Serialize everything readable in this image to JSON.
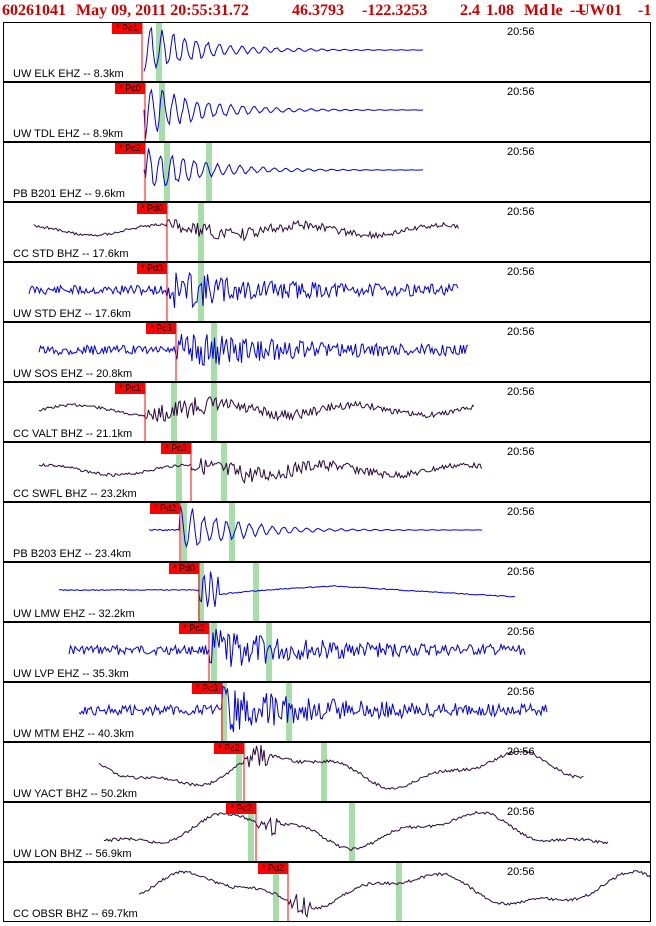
{
  "header": {
    "event_id": "60261041",
    "datetime": "May 09, 2011 20:55:31.72",
    "lat": "46.3793",
    "lon": "-122.3253",
    "depth": "2.4",
    "magnitude": "1.08",
    "mag_type": "Md",
    "quality": "le",
    "dashes": "---",
    "network": "UW",
    "version": "01",
    "flag": "-1"
  },
  "colors": {
    "blue": "#0000dd",
    "dark": "#2a0a3a",
    "pick": "#ff0000",
    "marker": "#a8dca8"
  },
  "chart_data": {
    "type": "line",
    "x_unit": "time",
    "traces": [
      {
        "label": "UW ELK EHZ -- 8.3km",
        "time": "20:56",
        "pick": "* Pc1",
        "color": "blue"
      },
      {
        "label": "UW TDL EHZ -- 8.9km",
        "time": "20:56",
        "pick": "* Pc0",
        "color": "blue"
      },
      {
        "label": "PB B201 EHZ -- 9.6km",
        "time": "20:56",
        "pick": "* Pc2",
        "color": "blue"
      },
      {
        "label": "CC STD BHZ -- 17.6km",
        "time": "20:56",
        "pick": "* Pd0",
        "color": "dark"
      },
      {
        "label": "UW STD EHZ -- 17.6km",
        "time": "20:56",
        "pick": "* Pd3",
        "color": "blue"
      },
      {
        "label": "UW SOS EHZ -- 20.8km",
        "time": "20:56",
        "pick": "* Pc3",
        "color": "blue"
      },
      {
        "label": "CC VALT BHZ -- 21.1km",
        "time": "20:56",
        "pick": "* Pc1",
        "color": "dark"
      },
      {
        "label": "CC SWFL BHZ -- 23.2km",
        "time": "20:56",
        "pick": "* Pc3",
        "color": "dark"
      },
      {
        "label": "PB B203 EHZ -- 23.4km",
        "time": "20:56",
        "pick": "* Pd2",
        "color": "blue"
      },
      {
        "label": "UW LMW EHZ -- 32.2km",
        "time": "20:56",
        "pick": "* Pd0",
        "color": "blue"
      },
      {
        "label": "UW LVP EHZ -- 35.3km",
        "time": "20:56",
        "pick": "* Pc3",
        "color": "blue"
      },
      {
        "label": "UW MTM EHZ -- 40.3km",
        "time": "20:56",
        "pick": "* Pc3",
        "color": "blue"
      },
      {
        "label": "UW YACT BHZ -- 50.2km",
        "time": "20:56",
        "pick": "* Pc2",
        "color": "dark"
      },
      {
        "label": "UW LON BHZ -- 56.9km",
        "time": "20:56",
        "pick": "* Pc2",
        "color": "dark"
      },
      {
        "label": "CC OBSR BHZ -- 69.7km",
        "time": "20:56",
        "pick": "* Pd2",
        "color": "dark"
      }
    ]
  }
}
